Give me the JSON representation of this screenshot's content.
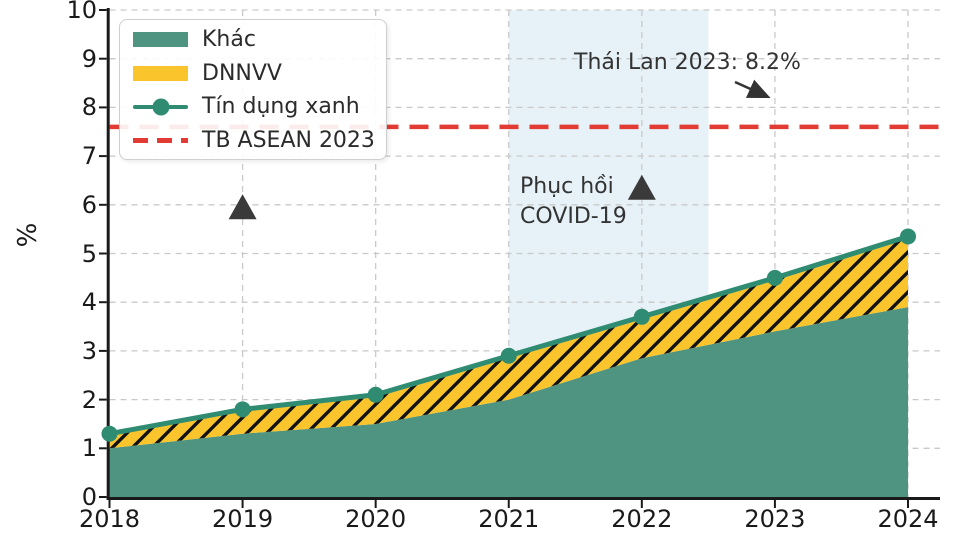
{
  "figure": {
    "ylabel": "%"
  },
  "chart_data": {
    "type": "area",
    "x": [
      2018,
      2019,
      2020,
      2021,
      2022,
      2023,
      2024
    ],
    "series": [
      {
        "name": "Khác",
        "type": "area",
        "stack": "bottom",
        "values": [
          1.0,
          1.3,
          1.5,
          2.0,
          2.85,
          3.4,
          3.9
        ]
      },
      {
        "name": "DNNVV",
        "type": "area",
        "stack": "on-top-of-Khác",
        "hatch": "//",
        "values": [
          0.3,
          0.5,
          0.6,
          0.9,
          0.85,
          1.1,
          1.45
        ]
      },
      {
        "name": "Tín dụng xanh",
        "type": "line-with-markers",
        "values": [
          1.3,
          1.8,
          2.1,
          2.9,
          3.7,
          4.5,
          5.35
        ]
      }
    ],
    "reference_line": {
      "label": "TB ASEAN 2023",
      "value": 7.6,
      "style": "dashed"
    },
    "highlight_span": {
      "from": 2021,
      "to": 2022.5,
      "label": "Phục hồi COVID-19"
    },
    "event_markers": [
      {
        "shape": "triangle",
        "x": 2019,
        "y": 5.95
      },
      {
        "shape": "triangle",
        "x": 2022,
        "y": 6.35
      }
    ],
    "ylabel": "%",
    "ylim": [
      0,
      10
    ],
    "yticks": [
      0,
      1,
      2,
      3,
      4,
      5,
      6,
      7,
      8,
      9,
      10
    ],
    "xticks": [
      2018,
      2019,
      2020,
      2021,
      2022,
      2023,
      2024
    ],
    "grid": "dashed",
    "legend_position": "upper-left"
  },
  "legend": {
    "items": [
      {
        "label": "Khác",
        "swatch": "area-teal"
      },
      {
        "label": "DNNVV",
        "swatch": "area-yellow"
      },
      {
        "label": "Tín dụng xanh",
        "swatch": "line-with-marker-teal"
      },
      {
        "label": "TB ASEAN 2023",
        "swatch": "dashed-red"
      }
    ]
  },
  "annotations": {
    "thailand": {
      "text": "Thái Lan 2023: 8.2%"
    },
    "covid": {
      "line1": "Phục hồi",
      "line2": "COVID-19"
    }
  },
  "colors": {
    "area_khac": "#4E9480",
    "area_dnnvv": "#FAC42D",
    "hatch": "#111111",
    "line": "#2F8C73",
    "reference": "#E23B33",
    "highlight": "#D9EBF5",
    "grid": "#C9C9C9",
    "axis": "#1A1A1A",
    "triangle": "#3A3A3A",
    "text": "#333333"
  }
}
